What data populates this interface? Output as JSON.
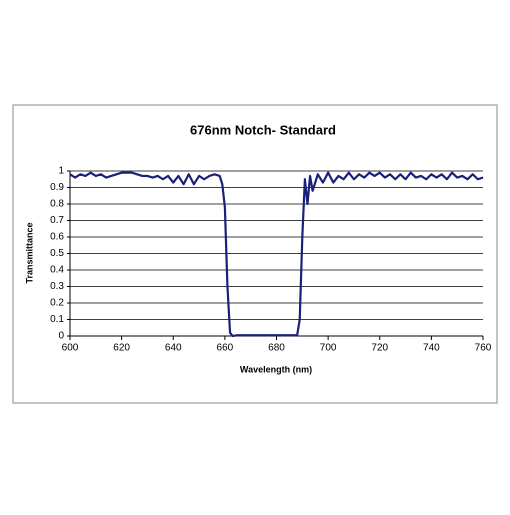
{
  "chart_data": {
    "type": "line",
    "title": "676nm Notch- Standard",
    "x_label": "Wavelength (nm)",
    "y_label": "Transmittance",
    "color": "#1a1f7a",
    "grid": true,
    "x": [
      600,
      602,
      604,
      606,
      608,
      610,
      612,
      614,
      616,
      618,
      620,
      622,
      624,
      626,
      628,
      630,
      632,
      634,
      636,
      638,
      640,
      642,
      644,
      646,
      648,
      650,
      652,
      654,
      656,
      658,
      659,
      660,
      661,
      662,
      663,
      665,
      670,
      675,
      680,
      685,
      688,
      689,
      690,
      691,
      692,
      693,
      694,
      696,
      698,
      700,
      702,
      704,
      706,
      708,
      710,
      712,
      714,
      716,
      718,
      720,
      722,
      724,
      726,
      728,
      730,
      732,
      734,
      736,
      738,
      740,
      742,
      744,
      746,
      748,
      750,
      752,
      754,
      756,
      758,
      760
    ],
    "values": [
      0.98,
      0.96,
      0.98,
      0.97,
      0.99,
      0.97,
      0.98,
      0.96,
      0.97,
      0.98,
      0.99,
      0.99,
      0.99,
      0.98,
      0.97,
      0.97,
      0.96,
      0.97,
      0.95,
      0.97,
      0.93,
      0.97,
      0.92,
      0.98,
      0.92,
      0.97,
      0.95,
      0.97,
      0.98,
      0.97,
      0.92,
      0.78,
      0.3,
      0.02,
      0.0,
      0.005,
      0.005,
      0.005,
      0.005,
      0.005,
      0.005,
      0.1,
      0.6,
      0.95,
      0.8,
      0.97,
      0.88,
      0.98,
      0.93,
      0.99,
      0.93,
      0.97,
      0.95,
      0.99,
      0.95,
      0.98,
      0.96,
      0.99,
      0.97,
      0.99,
      0.96,
      0.98,
      0.95,
      0.98,
      0.95,
      0.99,
      0.96,
      0.97,
      0.95,
      0.98,
      0.96,
      0.98,
      0.95,
      0.99,
      0.96,
      0.97,
      0.95,
      0.98,
      0.95,
      0.96
    ],
    "xlim": [
      600,
      760
    ],
    "xticks": [
      600,
      620,
      640,
      660,
      680,
      700,
      720,
      740,
      760
    ],
    "ylim": [
      0,
      1
    ],
    "yticks": [
      0,
      0.1,
      0.2,
      0.3,
      0.4,
      0.5,
      0.6,
      0.7,
      0.8,
      0.9,
      1
    ]
  }
}
